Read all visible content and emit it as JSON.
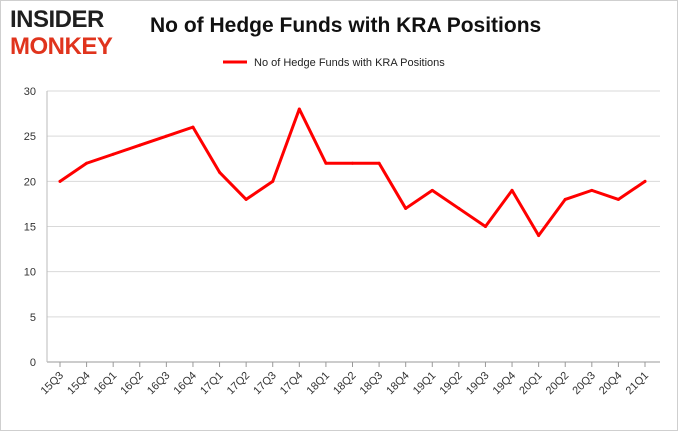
{
  "logo": {
    "line1": "INSIDER",
    "line2": "MONKEY"
  },
  "colors": {
    "series": "#ff0000",
    "logo_accent": "#e0341d",
    "grid": "#d9d9d9"
  },
  "chart_data": {
    "type": "line",
    "title": "No of Hedge Funds with KRA Positions",
    "xlabel": "",
    "ylabel": "",
    "ylim": [
      0,
      30
    ],
    "yticks": [
      0,
      5,
      10,
      15,
      20,
      25,
      30
    ],
    "grid": true,
    "legend_position": "top-center",
    "categories": [
      "15Q3",
      "15Q4",
      "16Q1",
      "16Q2",
      "16Q3",
      "16Q4",
      "17Q1",
      "17Q2",
      "17Q3",
      "17Q4",
      "18Q1",
      "18Q2",
      "18Q3",
      "18Q4",
      "19Q1",
      "19Q2",
      "19Q3",
      "19Q4",
      "20Q1",
      "20Q2",
      "20Q3",
      "20Q4",
      "21Q1"
    ],
    "series": [
      {
        "name": "No of Hedge Funds with KRA Positions",
        "values": [
          20,
          22,
          23,
          24,
          25,
          26,
          21,
          18,
          20,
          28,
          22,
          22,
          22,
          17,
          19,
          17,
          15,
          19,
          14,
          18,
          19,
          18,
          20
        ]
      }
    ]
  }
}
